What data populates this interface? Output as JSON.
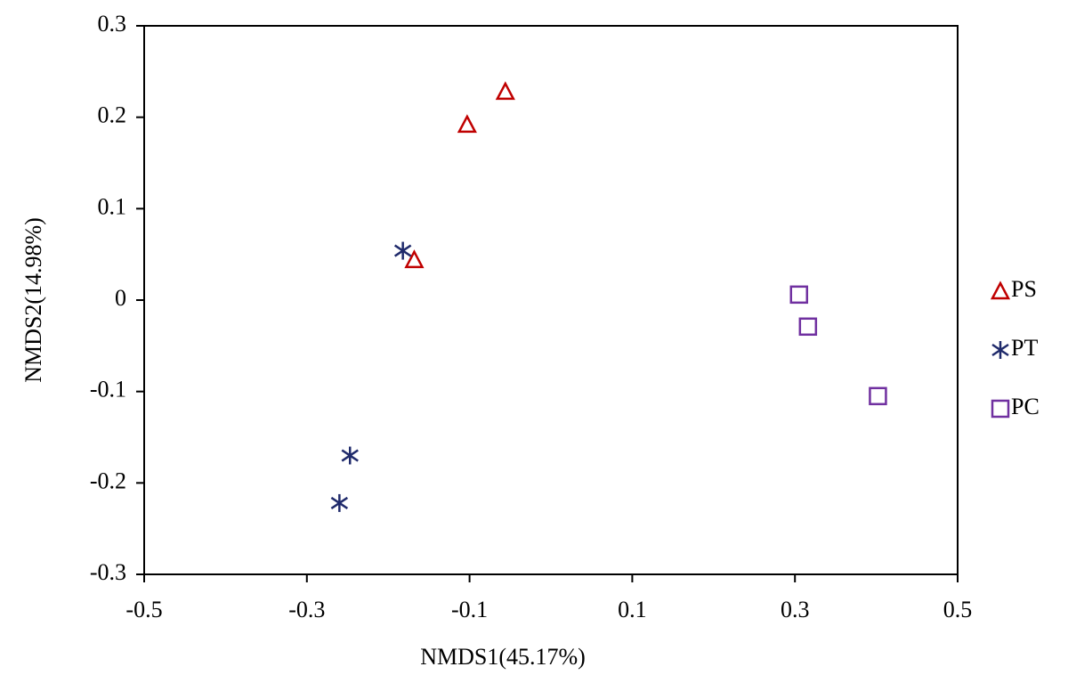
{
  "chart_data": {
    "type": "scatter",
    "x_label": "NMDS1(45.17%)",
    "y_label": "NMDS2(14.98%)",
    "xlim": [
      -0.5,
      0.5
    ],
    "xticks": [
      -0.5,
      -0.3,
      -0.1,
      0.1,
      0.3,
      0.5
    ],
    "ylim": [
      -0.3,
      0.3
    ],
    "yticks": [
      -0.3,
      -0.2,
      -0.1,
      0,
      0.1,
      0.2,
      0.3
    ],
    "grid": false,
    "legend": "right",
    "series": [
      {
        "name": "PS",
        "color": "#c00000",
        "marker": "triangle",
        "x": [
          -0.056,
          -0.103,
          -0.168
        ],
        "values": [
          0.228,
          0.192,
          0.044
        ]
      },
      {
        "name": "PT",
        "color": "#1f2a6b",
        "marker": "asterisk",
        "x": [
          -0.182,
          -0.247,
          -0.26
        ],
        "values": [
          0.054,
          -0.17,
          -0.222
        ]
      },
      {
        "name": "PC",
        "color": "#7030a0",
        "marker": "square",
        "x": [
          0.305,
          0.316,
          0.402
        ],
        "values": [
          0.006,
          -0.029,
          -0.105
        ]
      }
    ]
  }
}
